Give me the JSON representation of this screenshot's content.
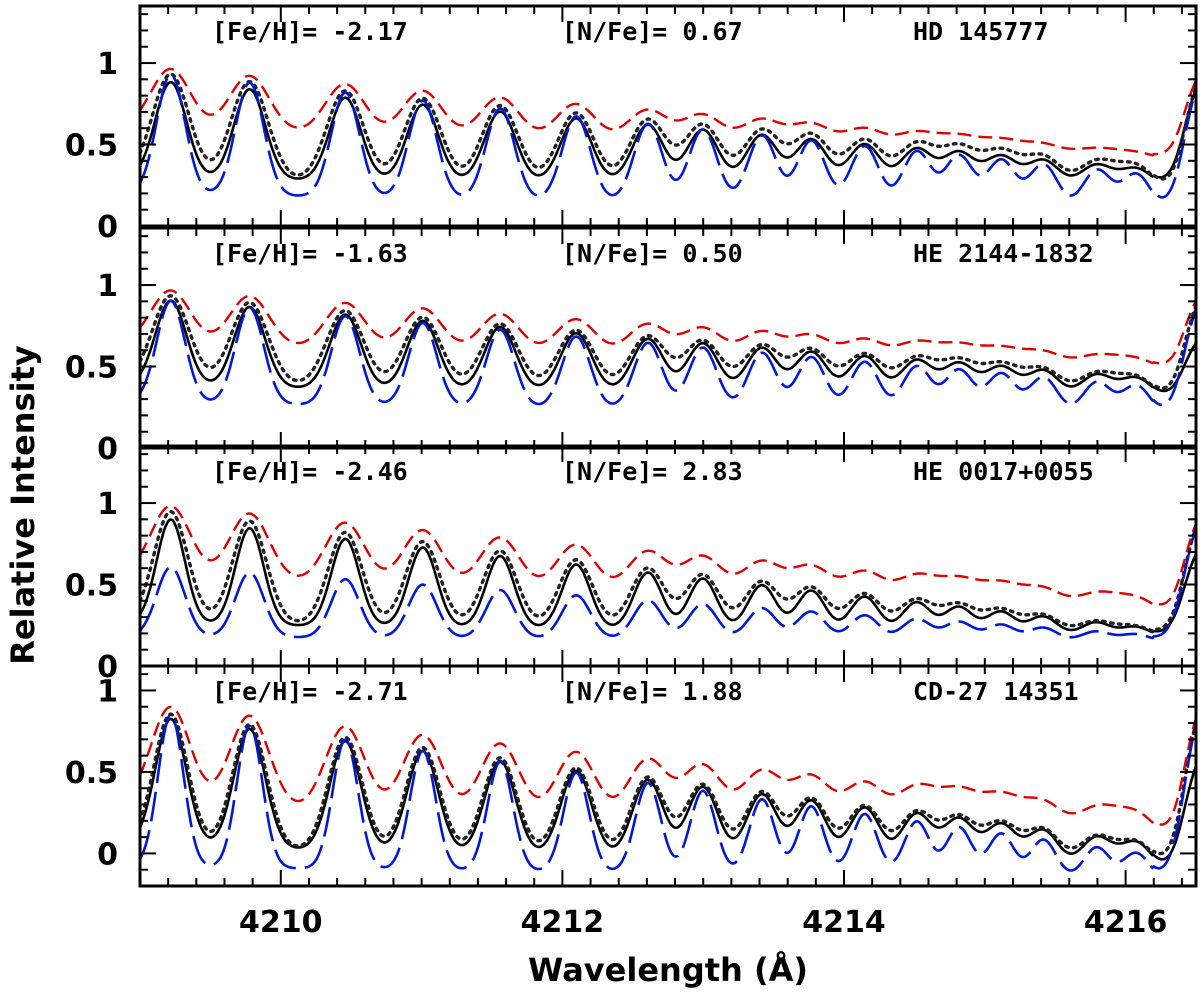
{
  "figure": {
    "xlabel": "Wavelength (Å)",
    "ylabel": "Relative Intensity"
  },
  "chart_data": [
    {
      "type": "line",
      "star": "HD 145777",
      "annotations": [
        "[Fe/H]= -2.17",
        "[N/Fe]= 0.67",
        "HD 145777"
      ],
      "xlim": [
        4209.0,
        4216.5
      ],
      "ylim": [
        0.0,
        1.35
      ],
      "xticks": [
        4210,
        4212,
        4214,
        4216
      ],
      "yticks": [
        0,
        0.5,
        1
      ],
      "yticklabels": [
        "0",
        "0.5",
        "1"
      ],
      "peaks": [
        4209.22,
        4209.78,
        4210.46,
        4211.01,
        4211.56,
        4212.1,
        4212.61,
        4213.0,
        4213.42,
        4213.77,
        4214.15,
        4214.52,
        4214.82,
        4215.12,
        4215.42,
        4215.8,
        4216.08
      ],
      "series": [
        {
          "style": "observed",
          "base": 0.29,
          "baseEnd": 0.24,
          "top": 0.9,
          "topEnd": 0.32,
          "width": 0.11,
          "hiLevel": 0.97
        },
        {
          "style": "best-fit",
          "base": 0.29,
          "baseEnd": 0.19,
          "top": 0.95,
          "topEnd": 0.33,
          "width": 0.13,
          "hiLevel": 1.0
        },
        {
          "style": "high",
          "base": 0.6,
          "baseEnd": 0.4,
          "top": 0.98,
          "topEnd": 0.42,
          "width": 0.14,
          "hiLevel": 1.0
        },
        {
          "style": "low",
          "base": 0.2,
          "baseEnd": 0.09,
          "top": 0.95,
          "topEnd": 0.28,
          "width": 0.1,
          "hiLevel": 1.0
        }
      ]
    },
    {
      "type": "line",
      "star": "HE 2144-1832",
      "annotations": [
        "[Fe/H]= -1.63",
        "[N/Fe]= 0.50",
        "HE 2144-1832"
      ],
      "xlim": [
        4209.0,
        4216.5
      ],
      "ylim": [
        0.0,
        1.35
      ],
      "xticks": [
        4210,
        4212,
        4214,
        4216
      ],
      "yticks": [
        0,
        0.5,
        1
      ],
      "yticklabels": [
        "0",
        "0.5",
        "1"
      ],
      "peaks": [
        4209.22,
        4209.78,
        4210.46,
        4211.01,
        4211.56,
        4212.1,
        4212.61,
        4213.0,
        4213.42,
        4213.77,
        4214.15,
        4214.52,
        4214.82,
        4215.12,
        4215.42,
        4215.8,
        4216.08
      ],
      "series": [
        {
          "style": "observed",
          "base": 0.38,
          "baseEnd": 0.3,
          "top": 0.92,
          "topEnd": 0.4,
          "width": 0.11,
          "hiLevel": 0.72
        },
        {
          "style": "best-fit",
          "base": 0.4,
          "baseEnd": 0.28,
          "top": 0.95,
          "topEnd": 0.4,
          "width": 0.13,
          "hiLevel": 1.0
        },
        {
          "style": "high",
          "base": 0.64,
          "baseEnd": 0.46,
          "top": 0.98,
          "topEnd": 0.52,
          "width": 0.14,
          "hiLevel": 1.0
        },
        {
          "style": "low",
          "base": 0.28,
          "baseEnd": 0.19,
          "top": 0.92,
          "topEnd": 0.35,
          "width": 0.1,
          "hiLevel": 1.0
        }
      ]
    },
    {
      "type": "line",
      "star": "HE 0017+0055",
      "annotations": [
        "[Fe/H]= -2.46",
        "[N/Fe]= 2.83",
        "HE 0017+0055"
      ],
      "xlim": [
        4209.0,
        4216.5
      ],
      "ylim": [
        0.0,
        1.35
      ],
      "xticks": [
        4210,
        4212,
        4214,
        4216
      ],
      "yticks": [
        0,
        0.5,
        1
      ],
      "yticklabels": [
        "0",
        "0.5",
        "1"
      ],
      "peaks": [
        4209.22,
        4209.78,
        4210.46,
        4211.01,
        4211.56,
        4212.1,
        4212.61,
        4213.0,
        4213.42,
        4213.77,
        4214.15,
        4214.52,
        4214.82,
        4215.12,
        4215.42,
        4215.8,
        4216.08
      ],
      "series": [
        {
          "style": "observed",
          "base": 0.26,
          "baseEnd": 0.18,
          "top": 0.92,
          "topEnd": 0.2,
          "width": 0.1,
          "hiLevel": 0.8
        },
        {
          "style": "best-fit",
          "base": 0.27,
          "baseEnd": 0.18,
          "top": 0.97,
          "topEnd": 0.2,
          "width": 0.12,
          "hiLevel": 1.0
        },
        {
          "style": "high",
          "base": 0.55,
          "baseEnd": 0.3,
          "top": 1.0,
          "topEnd": 0.38,
          "width": 0.14,
          "hiLevel": 1.0
        },
        {
          "style": "low",
          "base": 0.18,
          "baseEnd": 0.15,
          "top": 0.62,
          "topEnd": 0.17,
          "width": 0.1,
          "hiLevel": 1.0
        }
      ]
    },
    {
      "type": "line",
      "star": "CD-27 14351",
      "annotations": [
        "[Fe/H]= -2.71",
        "[N/Fe]= 1.88",
        "CD-27 14351"
      ],
      "xlim": [
        4209.0,
        4216.5
      ],
      "ylim": [
        -0.2,
        1.15
      ],
      "xticks": [
        4210,
        4212,
        4214,
        4216
      ],
      "xticklabels": [
        "4210",
        "4212",
        "4214",
        "4216"
      ],
      "yticks": [
        0,
        0.5,
        1
      ],
      "yticklabels": [
        "0",
        "0.5",
        "1"
      ],
      "peaks": [
        4209.22,
        4209.78,
        4210.46,
        4211.01,
        4211.56,
        4212.1,
        4212.61,
        4213.0,
        4213.42,
        4213.77,
        4214.15,
        4214.52,
        4214.82,
        4215.12,
        4215.42,
        4215.8,
        4216.08
      ],
      "series": [
        {
          "style": "observed",
          "base": 0.05,
          "baseEnd": -0.12,
          "top": 0.85,
          "topEnd": 0.02,
          "width": 0.11,
          "hiLevel": 0.68
        },
        {
          "style": "best-fit",
          "base": 0.04,
          "baseEnd": -0.1,
          "top": 0.88,
          "topEnd": 0.02,
          "width": 0.12,
          "hiLevel": 1.0
        },
        {
          "style": "high",
          "base": 0.3,
          "baseEnd": 0.06,
          "top": 0.92,
          "topEnd": 0.2,
          "width": 0.14,
          "hiLevel": 1.0
        },
        {
          "style": "low",
          "base": -0.08,
          "baseEnd": -0.16,
          "top": 0.88,
          "topEnd": -0.05,
          "width": 0.09,
          "hiLevel": 1.0
        }
      ]
    }
  ]
}
